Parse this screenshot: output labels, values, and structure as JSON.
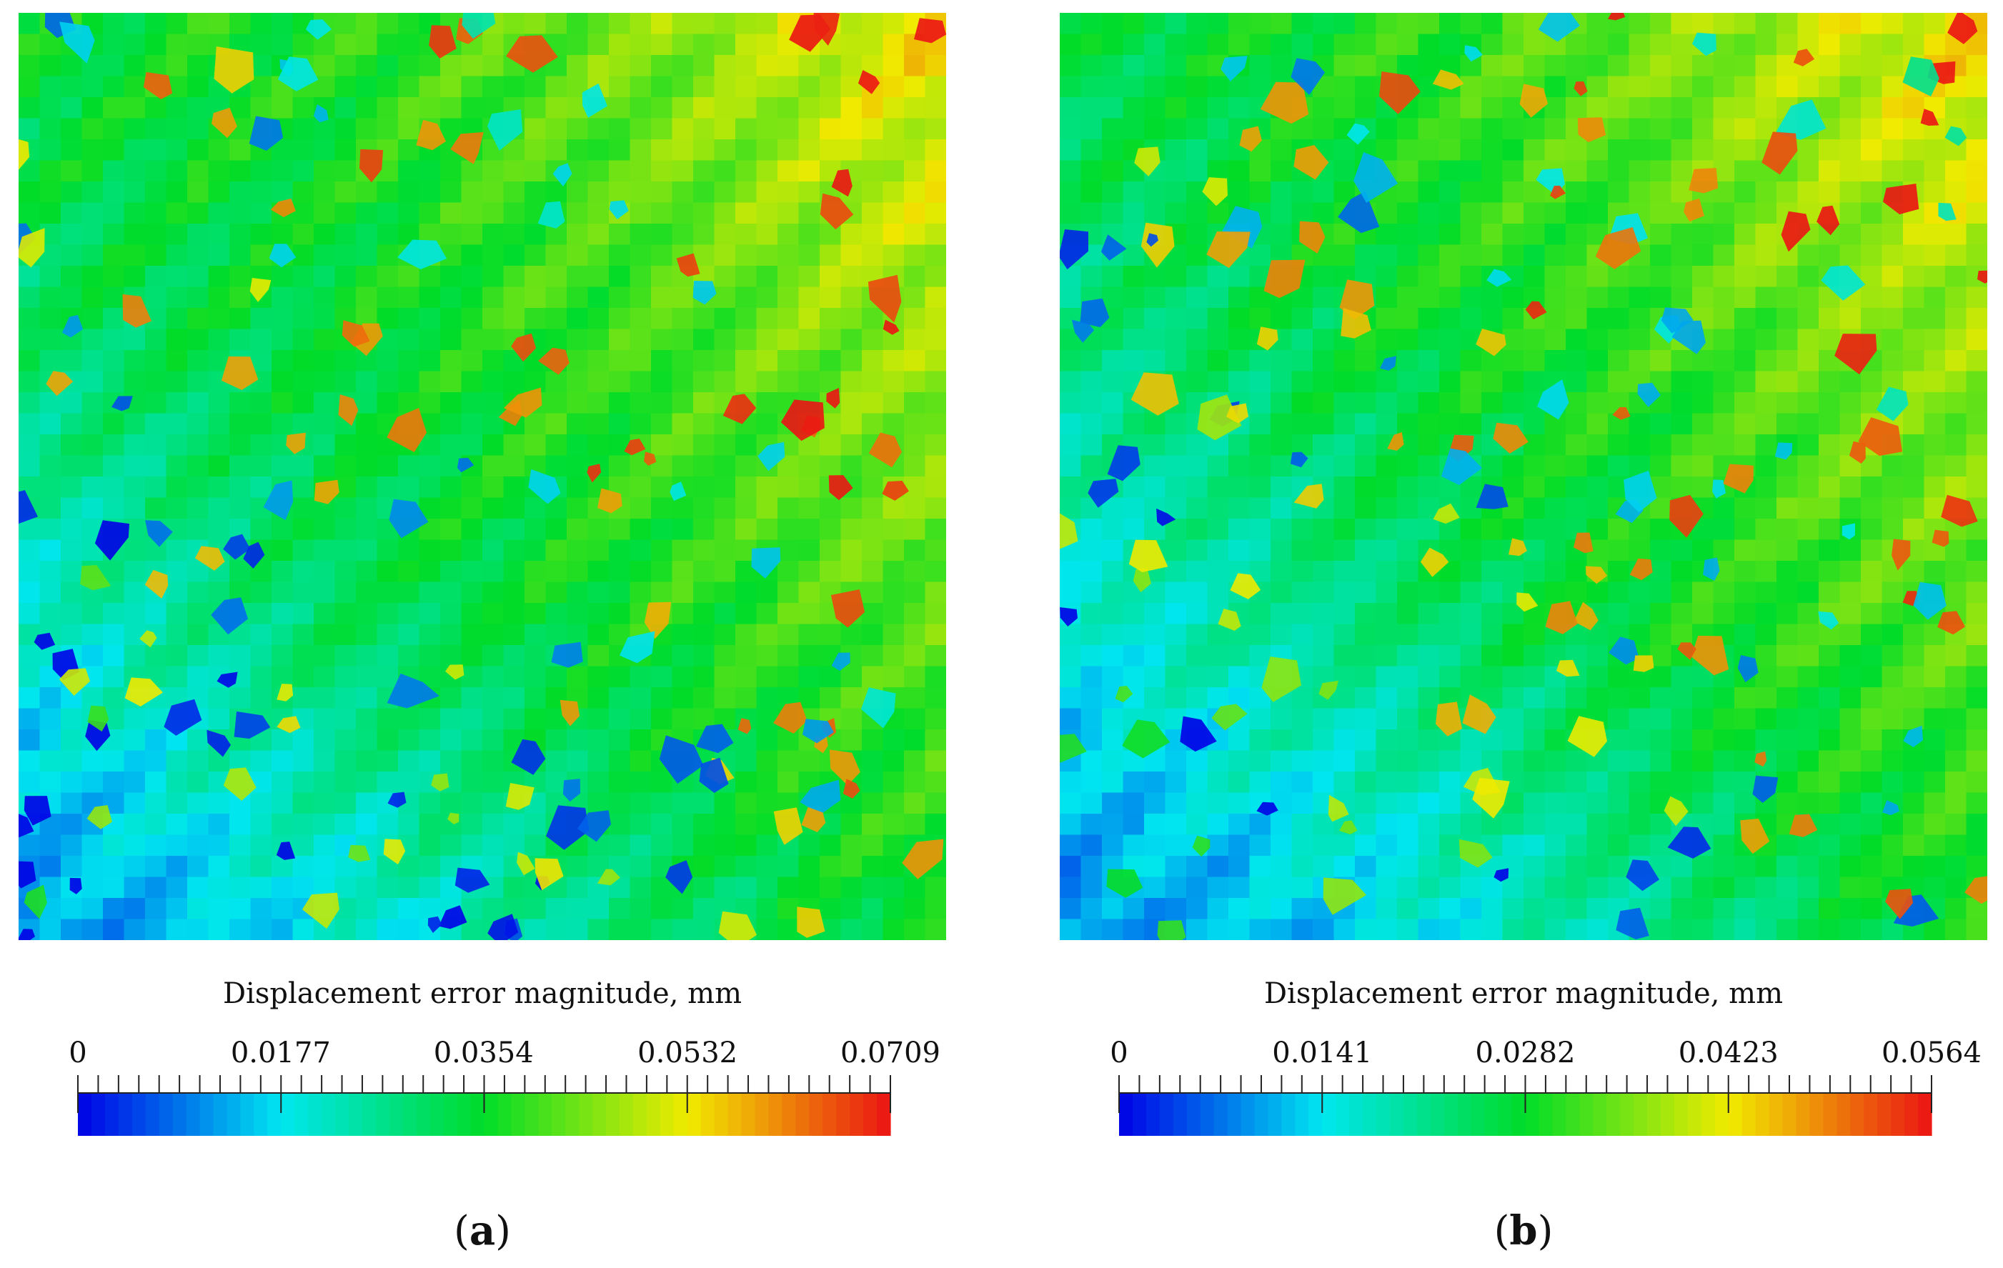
{
  "panels": [
    {
      "id": "a",
      "caption_letter": "a",
      "colorbar": {
        "title": "Displacement error magnitude, mm",
        "min": 0,
        "max": 0.0709,
        "tick_labels": [
          "0",
          "0.0177",
          "0.0354",
          "0.0532",
          "0.0709"
        ]
      }
    },
    {
      "id": "b",
      "caption_letter": "b",
      "colorbar": {
        "title": "Displacement error magnitude, mm",
        "min": 0,
        "max": 0.0564,
        "tick_labels": [
          "0",
          "0.0141",
          "0.0282",
          "0.0423",
          "0.0564"
        ]
      }
    }
  ],
  "chart_data": [
    {
      "type": "heatmap",
      "panel": "a",
      "colorbar_label": "Displacement error magnitude, mm",
      "value_range": [
        0,
        0.0709
      ],
      "colorbar_ticks": [
        0,
        0.0177,
        0.0354,
        0.0532,
        0.0709
      ],
      "colormap": "rainbow (blue-cyan-green-yellow-red)",
      "field_values_grid_4x4": [
        [
          0.035,
          0.038,
          0.045,
          0.055
        ],
        [
          0.03,
          0.034,
          0.04,
          0.048
        ],
        [
          0.02,
          0.03,
          0.036,
          0.042
        ],
        [
          0.01,
          0.018,
          0.028,
          0.036
        ]
      ]
    },
    {
      "type": "heatmap",
      "panel": "b",
      "colorbar_label": "Displacement error magnitude, mm",
      "value_range": [
        0,
        0.0564
      ],
      "colorbar_ticks": [
        0,
        0.0141,
        0.0282,
        0.0423,
        0.0564
      ],
      "colormap": "rainbow (blue-cyan-green-yellow-red)",
      "field_values_grid_4x4": [
        [
          0.026,
          0.03,
          0.036,
          0.044
        ],
        [
          0.022,
          0.027,
          0.032,
          0.038
        ],
        [
          0.015,
          0.022,
          0.028,
          0.034
        ],
        [
          0.008,
          0.013,
          0.021,
          0.029
        ]
      ]
    }
  ]
}
